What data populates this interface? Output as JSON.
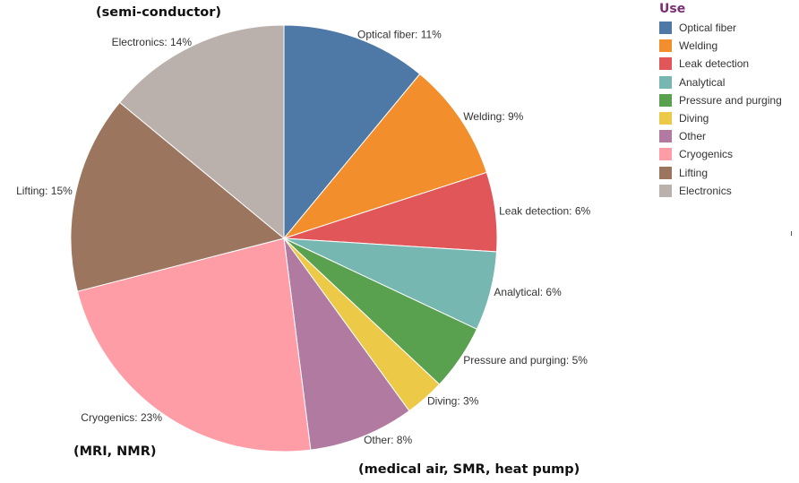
{
  "chart_data": {
    "type": "pie",
    "legend_title": "Use",
    "legend_position": "top-right",
    "slices": [
      {
        "name": "Optical fiber",
        "value": 11,
        "label": "Optical fiber: 11%",
        "color": "#4e79a7"
      },
      {
        "name": "Welding",
        "value": 9,
        "label": "Welding: 9%",
        "color": "#f28e2b"
      },
      {
        "name": "Leak detection",
        "value": 6,
        "label": "Leak detection: 6%",
        "color": "#e15759"
      },
      {
        "name": "Analytical",
        "value": 6,
        "label": "Analytical: 6%",
        "color": "#76b7b2"
      },
      {
        "name": "Pressure and purging",
        "value": 5,
        "label": "Pressure and purging: 5%",
        "color": "#59a14f"
      },
      {
        "name": "Diving",
        "value": 3,
        "label": "Diving: 3%",
        "color": "#edc948"
      },
      {
        "name": "Other",
        "value": 8,
        "label": "Other: 8%",
        "color": "#b07aa1"
      },
      {
        "name": "Cryogenics",
        "value": 23,
        "label": "Cryogenics: 23%",
        "color": "#ff9da7"
      },
      {
        "name": "Lifting",
        "value": 15,
        "label": "Lifting: 15%",
        "color": "#9c755f"
      },
      {
        "name": "Electronics",
        "value": 14,
        "label": "Electronics: 14%",
        "color": "#bab0ac"
      }
    ]
  },
  "annotations": {
    "electronics_note": "(semi-conductor)",
    "cryogenics_note": "(MRI, NMR)",
    "other_note": "(medical air, SMR, heat pump)"
  }
}
